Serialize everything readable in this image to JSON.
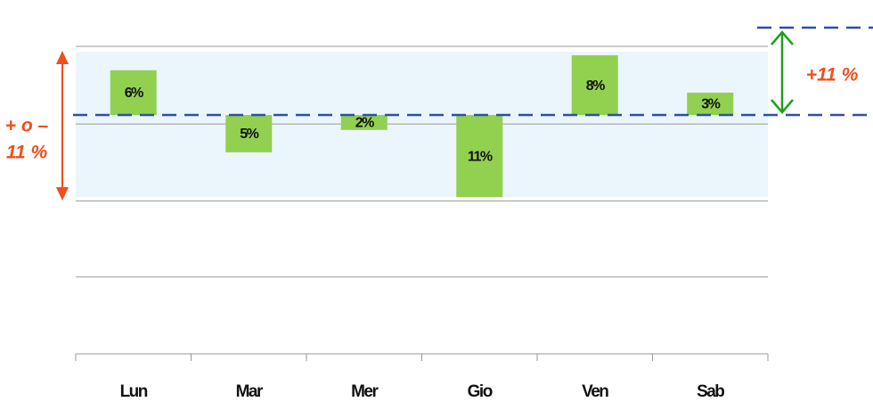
{
  "chart_data": {
    "type": "bar",
    "categories": [
      "Lun",
      "Mar",
      "Mer",
      "Gio",
      "Ven",
      "Sab"
    ],
    "values": [
      6,
      -5,
      -2,
      -11,
      8,
      3
    ],
    "value_labels": [
      "6%",
      "5%",
      "2%",
      "11%",
      "8%",
      "3%"
    ],
    "color": "#92d050",
    "ylim": [
      -32,
      9.2
    ],
    "yticks": [
      -32,
      -21.7,
      -11.5,
      -1.2,
      9.2
    ],
    "grid": true,
    "annotations": [
      "+ o –",
      "11 %",
      "+11 %"
    ]
  }
}
